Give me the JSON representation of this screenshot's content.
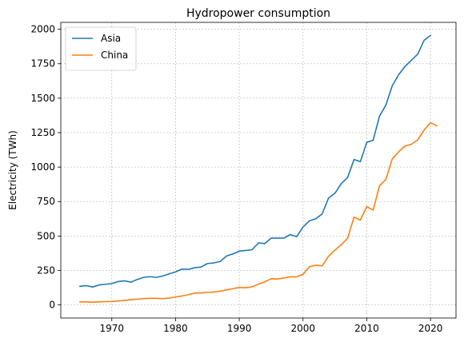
{
  "chart_data": {
    "type": "line",
    "title": "Hydropower consumption",
    "xlabel": "",
    "ylabel": "Electricity (TWh)",
    "xlim": [
      1962,
      2024
    ],
    "ylim": [
      -95,
      2050
    ],
    "x_ticks": [
      1970,
      1980,
      1990,
      2000,
      2010,
      2020
    ],
    "y_ticks": [
      0,
      250,
      500,
      750,
      1000,
      1250,
      1500,
      1750,
      2000
    ],
    "grid": true,
    "legend_position": "top-left",
    "series": [
      {
        "name": "Asia",
        "color": "#1f77b4",
        "x": [
          1965,
          1966,
          1967,
          1968,
          1969,
          1970,
          1971,
          1972,
          1973,
          1974,
          1975,
          1976,
          1977,
          1978,
          1979,
          1980,
          1981,
          1982,
          1983,
          1984,
          1985,
          1986,
          1987,
          1988,
          1989,
          1990,
          1991,
          1992,
          1993,
          1994,
          1995,
          1996,
          1997,
          1998,
          1999,
          2000,
          2001,
          2002,
          2003,
          2004,
          2005,
          2006,
          2007,
          2008,
          2009,
          2010,
          2011,
          2012,
          2013,
          2014,
          2015,
          2016,
          2017,
          2018,
          2019,
          2020
        ],
        "values": [
          135,
          140,
          130,
          145,
          150,
          155,
          170,
          175,
          165,
          185,
          200,
          205,
          200,
          210,
          225,
          240,
          260,
          258,
          270,
          275,
          300,
          305,
          315,
          355,
          370,
          390,
          395,
          400,
          450,
          445,
          485,
          485,
          485,
          510,
          495,
          565,
          610,
          625,
          660,
          775,
          810,
          880,
          925,
          1055,
          1040,
          1180,
          1195,
          1370,
          1450,
          1590,
          1670,
          1730,
          1775,
          1820,
          1920,
          1955
        ]
      },
      {
        "name": "China",
        "color": "#ff7f0e",
        "x": [
          1965,
          1966,
          1967,
          1968,
          1969,
          1970,
          1971,
          1972,
          1973,
          1974,
          1975,
          1976,
          1977,
          1978,
          1979,
          1980,
          1981,
          1982,
          1983,
          1984,
          1985,
          1986,
          1987,
          1988,
          1989,
          1990,
          1991,
          1992,
          1993,
          1994,
          1995,
          1996,
          1997,
          1998,
          1999,
          2000,
          2001,
          2002,
          2003,
          2004,
          2005,
          2006,
          2007,
          2008,
          2009,
          2010,
          2011,
          2012,
          2013,
          2014,
          2015,
          2016,
          2017,
          2018,
          2019,
          2020,
          2021
        ],
        "values": [
          22,
          22,
          20,
          22,
          24,
          25,
          29,
          33,
          38,
          42,
          46,
          48,
          48,
          46,
          50,
          58,
          65,
          74,
          86,
          87,
          92,
          94,
          100,
          109,
          118,
          127,
          125,
          131,
          151,
          167,
          190,
          188,
          196,
          204,
          204,
          222,
          277,
          288,
          283,
          353,
          397,
          436,
          485,
          637,
          616,
          713,
          688,
          864,
          911,
          1059,
          1111,
          1153,
          1165,
          1198,
          1269,
          1322,
          1300
        ]
      }
    ]
  }
}
